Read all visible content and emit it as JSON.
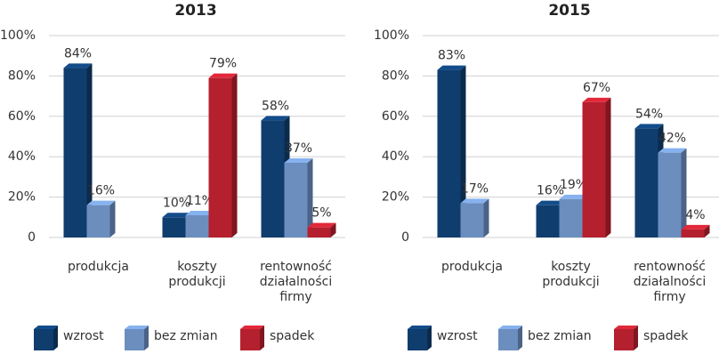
{
  "chart_data": [
    {
      "type": "bar",
      "title": "2013",
      "categories": [
        "produkcja",
        "koszty\nprodukcji",
        "rentowność\ndziałalności\nfirmy"
      ],
      "series": [
        {
          "name": "wzrost",
          "color": "#0f3d6e",
          "values": [
            84,
            10,
            58
          ],
          "value_labels": [
            "84%",
            "10%",
            "58%"
          ]
        },
        {
          "name": "bez zmian",
          "color": "#6b8ebf",
          "values": [
            16,
            11,
            37
          ],
          "value_labels": [
            "16%",
            "11%",
            "37%"
          ]
        },
        {
          "name": "spadek",
          "color": "#b5202e",
          "values": [
            null,
            79,
            5
          ],
          "value_labels": [
            null,
            "79%",
            "5%"
          ]
        }
      ],
      "ylim": [
        0,
        100
      ],
      "yticks": [
        0,
        {
          "value": 20,
          "label": "20%"
        },
        {
          "value": 40,
          "label": "40%"
        },
        {
          "value": 60,
          "label": "60%"
        },
        {
          "value": 80,
          "label": "80%"
        },
        {
          "value": 100,
          "label": "100%"
        }
      ],
      "grid": true,
      "legend": "bottom"
    },
    {
      "type": "bar",
      "title": "2015",
      "categories": [
        "produkcja",
        "koszty\nprodukcji",
        "rentowność\ndziałalności\nfirmy"
      ],
      "series": [
        {
          "name": "wzrost",
          "color": "#0f3d6e",
          "values": [
            83,
            16,
            54
          ],
          "value_labels": [
            "83%",
            "16%",
            "54%"
          ]
        },
        {
          "name": "bez zmian",
          "color": "#6b8ebf",
          "values": [
            17,
            19,
            42
          ],
          "value_labels": [
            "17%",
            "19%",
            "42%"
          ]
        },
        {
          "name": "spadek",
          "color": "#b5202e",
          "values": [
            null,
            67,
            4
          ],
          "value_labels": [
            null,
            "67%",
            "4%"
          ]
        }
      ],
      "ylim": [
        0,
        100
      ],
      "yticks": [
        0,
        {
          "value": 20,
          "label": "20%"
        },
        {
          "value": 40,
          "label": "40%"
        },
        {
          "value": 60,
          "label": "60%"
        },
        {
          "value": 80,
          "label": "80%"
        },
        {
          "value": 100,
          "label": "100%"
        }
      ],
      "grid": true,
      "legend": "bottom"
    }
  ]
}
